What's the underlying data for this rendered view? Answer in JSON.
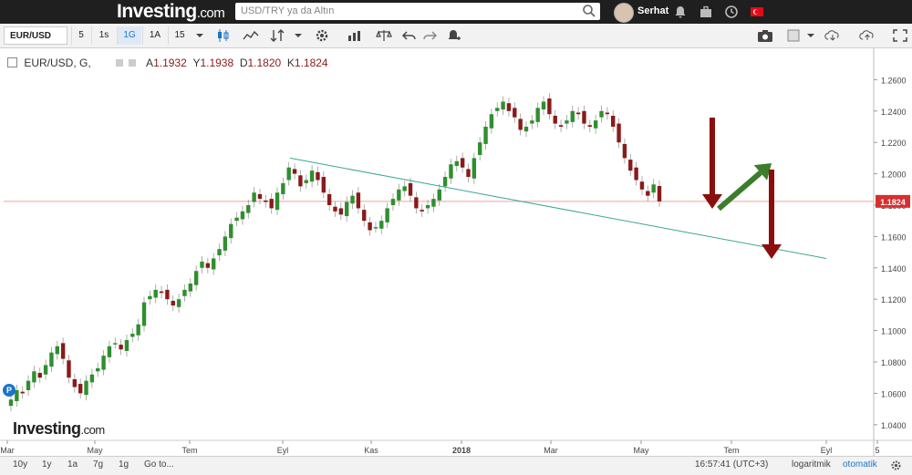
{
  "header": {
    "logo": "Investing",
    "logo_suffix": ".com",
    "search_placeholder": "USD/TRY ya da Altın",
    "user_name": "Serhat"
  },
  "toolbar": {
    "symbol": "EUR/USD",
    "intervals": [
      "5",
      "1s",
      "1G",
      "1A",
      "15"
    ],
    "active_interval": "1G"
  },
  "legend": {
    "pair": "EUR/USD, G,",
    "open_label": "A",
    "open": "1.1932",
    "high_label": "Y",
    "high": "1.1938",
    "low_label": "D",
    "low": "1.1820",
    "close_label": "K",
    "close": "1.1824"
  },
  "colors": {
    "up": "#2f8f2f",
    "down": "#8b1a1a",
    "trendline": "#3aa890",
    "price_line": "#f0a0a0",
    "arrow_green": "#3c7d2c",
    "arrow_red": "#8b0e0e",
    "price_tag": "#d62f2f"
  },
  "chart_data": {
    "type": "candlestick",
    "y_ticks": [
      "1.2600",
      "1.2400",
      "1.2200",
      "1.2000",
      "1.1800",
      "1.1600",
      "1.1400",
      "1.1200",
      "1.1000",
      "1.0800",
      "1.0600",
      "1.0400"
    ],
    "ylim": [
      1.03,
      1.28
    ],
    "x_ticks": [
      "Mar",
      "May",
      "Tem",
      "Eyl",
      "Kas",
      "2018",
      "Mar",
      "May",
      "Tem",
      "Eyl",
      "5"
    ],
    "current_price": "1.1824",
    "trendline": [
      [
        0.0,
        1.21
      ],
      [
        1.0,
        1.146
      ]
    ],
    "close": [
      1.056,
      1.062,
      1.06,
      1.068,
      1.074,
      1.07,
      1.078,
      1.086,
      1.09,
      1.082,
      1.07,
      1.064,
      1.06,
      1.068,
      1.072,
      1.076,
      1.084,
      1.09,
      1.092,
      1.088,
      1.094,
      1.098,
      1.104,
      1.118,
      1.122,
      1.126,
      1.124,
      1.12,
      1.116,
      1.12,
      1.126,
      1.13,
      1.138,
      1.144,
      1.14,
      1.146,
      1.152,
      1.16,
      1.168,
      1.172,
      1.176,
      1.18,
      1.188,
      1.184,
      1.182,
      1.178,
      1.188,
      1.194,
      1.204,
      1.2,
      1.192,
      1.196,
      1.202,
      1.196,
      1.188,
      1.18,
      1.176,
      1.174,
      1.182,
      1.186,
      1.178,
      1.17,
      1.164,
      1.166,
      1.17,
      1.178,
      1.184,
      1.19,
      1.192,
      1.186,
      1.178,
      1.176,
      1.18,
      1.184,
      1.19,
      1.198,
      1.206,
      1.208,
      1.204,
      1.198,
      1.21,
      1.22,
      1.23,
      1.238,
      1.242,
      1.246,
      1.24,
      1.236,
      1.228,
      1.23,
      1.234,
      1.242,
      1.246,
      1.238,
      1.232,
      1.23,
      1.234,
      1.24,
      1.238,
      1.232,
      1.23,
      1.234,
      1.24,
      1.238,
      1.23,
      1.22,
      1.21,
      1.202,
      1.196,
      1.19,
      1.186,
      1.1932,
      1.1824
    ],
    "series": [
      {
        "name": "EUR/USD"
      }
    ]
  },
  "annotations": {
    "arrow1": "down",
    "arrow2": "up",
    "arrow3": "down"
  },
  "footer": {
    "ranges": [
      "10y",
      "1y",
      "1a",
      "7g",
      "1g",
      "Go to..."
    ],
    "time": "16:57:41 (UTC+3)",
    "log_label": "logaritmik",
    "auto_label": "otomatik"
  }
}
